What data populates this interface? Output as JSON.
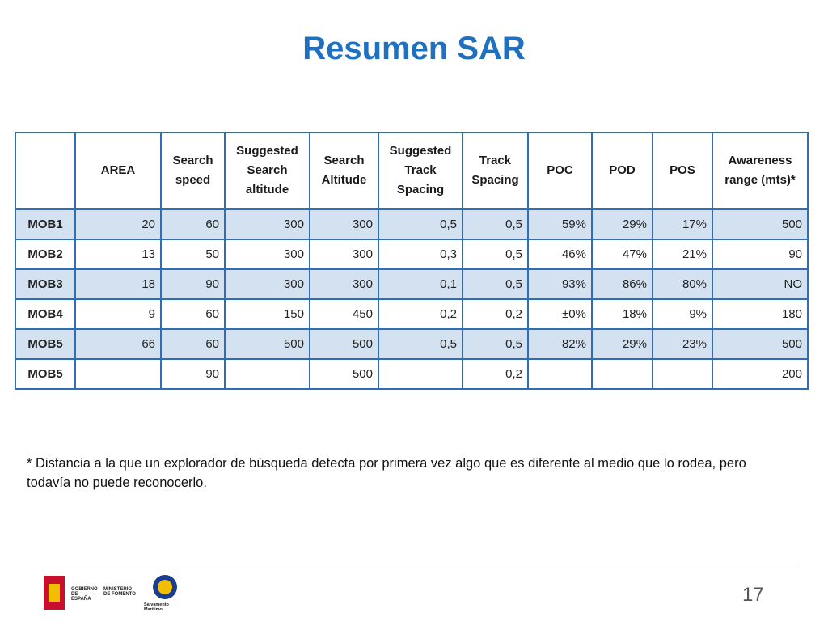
{
  "title": "Resumen SAR",
  "table": {
    "header": [
      null,
      "AREA",
      "Search speed",
      "Suggested Search altitude",
      "Search Altitude",
      "Suggested Track Spacing",
      "Track Spacing",
      "POC",
      "POD",
      "POS",
      "Awareness range (mts)*"
    ],
    "rows": [
      [
        "MOB1",
        20,
        60,
        300,
        300,
        "0,5",
        "0,5",
        "59%",
        "29%",
        "17%",
        500
      ],
      [
        "MOB2",
        13,
        50,
        300,
        300,
        "0,3",
        "0,5",
        "46%",
        "47%",
        "21%",
        90
      ],
      [
        "MOB3",
        18,
        90,
        300,
        300,
        "0,1",
        "0,5",
        "93%",
        "86%",
        "80%",
        "NO"
      ],
      [
        "MOB4",
        9,
        60,
        150,
        450,
        "0,2",
        "0,2",
        "±0%",
        "18%",
        "9%",
        180
      ],
      [
        "MOB5",
        66,
        60,
        500,
        500,
        "0,5",
        "0,5",
        "82%",
        "29%",
        "23%",
        500
      ],
      [
        "MOB5",
        null,
        90,
        null,
        500,
        null,
        "0,2",
        null,
        null,
        null,
        200
      ]
    ]
  },
  "footnote": "* Distancia a la que un explorador de búsqueda detecta por primera vez algo que es diferente al medio que lo rodea, pero todavía no puede reconocerlo.",
  "footer": {
    "logo_1": "GOBIERNO DE ESPAÑA",
    "logo_2": "MINISTERIO DE FOMENTO",
    "logo_3": "Salvamento Marítimo",
    "page_number": 17
  }
}
